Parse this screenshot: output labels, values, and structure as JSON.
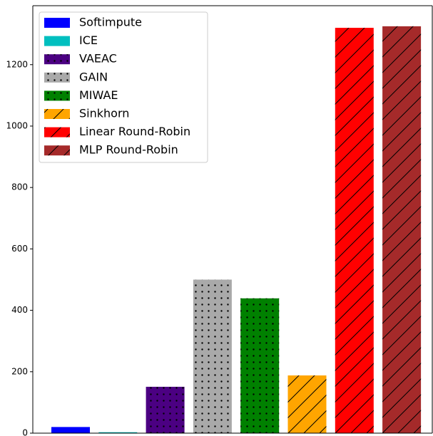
{
  "chart_data": {
    "type": "bar",
    "series": [
      {
        "name": "Softimpute",
        "color": "#0000ff",
        "values": [
          20
        ]
      },
      {
        "name": "ICE",
        "color": "#00bfbf",
        "values": [
          3
        ]
      },
      {
        "name": "VAEAC",
        "color": "#4b0082",
        "hatch": ".",
        "values": [
          151
        ]
      },
      {
        "name": "GAIN",
        "color": "#a9a9a9",
        "hatch": ".",
        "values": [
          500
        ]
      },
      {
        "name": "MIWAE",
        "color": "#008000",
        "hatch": ".",
        "values": [
          439
        ]
      },
      {
        "name": "Sinkhorn",
        "color": "#ffa500",
        "hatch": "/",
        "values": [
          188
        ]
      },
      {
        "name": "Linear Round-Robin",
        "color": "#ff0000",
        "hatch": "/",
        "values": [
          1320
        ]
      },
      {
        "name": "MLP Round-Robin",
        "color": "#a52a2a",
        "hatch": "/",
        "values": [
          1325
        ]
      }
    ],
    "ylim": [
      0,
      1392
    ],
    "yticks": [
      0,
      200,
      400,
      600,
      800,
      1000,
      1200
    ],
    "legend": "upper left"
  }
}
